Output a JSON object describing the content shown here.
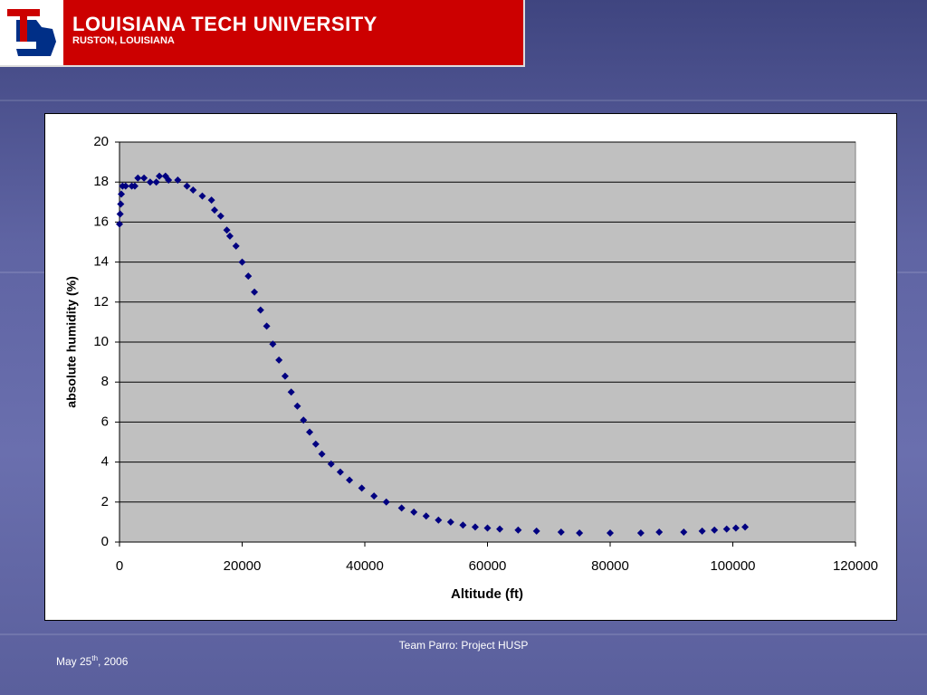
{
  "header": {
    "title": "LOUISIANA TECH UNIVERSITY",
    "subtitle": "RUSTON, LOUISIANA"
  },
  "footer": {
    "team": "Team Parro: Project HUSP",
    "date": [
      "May 25",
      "th",
      ", 2006"
    ]
  },
  "chart_data": {
    "type": "scatter",
    "x_label": "Altitude (ft)",
    "y_label": "absolute humidity (%)",
    "color": "#000080",
    "xlim": [
      0,
      120000
    ],
    "ylim": [
      0,
      20
    ],
    "xticks": [
      0,
      20000,
      40000,
      60000,
      80000,
      100000,
      120000
    ],
    "yticks": [
      0,
      2,
      4,
      6,
      8,
      10,
      12,
      14,
      16,
      18,
      20
    ],
    "grid": true,
    "x": [
      0,
      100,
      200,
      300,
      500,
      1000,
      2000,
      2500,
      3000,
      4000,
      5000,
      6000,
      6500,
      7500,
      8000,
      9500,
      11000,
      12000,
      13500,
      15000,
      15500,
      16500,
      17500,
      18000,
      19000,
      20000,
      21000,
      22000,
      23000,
      24000,
      25000,
      26000,
      27000,
      28000,
      29000,
      30000,
      31000,
      32000,
      33000,
      34500,
      36000,
      37500,
      39500,
      41500,
      43500,
      46000,
      48000,
      50000,
      52000,
      54000,
      56000,
      58000,
      60000,
      62000,
      65000,
      68000,
      72000,
      75000,
      80000,
      85000,
      88000,
      92000,
      95000,
      97000,
      99000,
      100500,
      102000
    ],
    "y": [
      15.9,
      16.4,
      16.9,
      17.4,
      17.8,
      17.8,
      17.8,
      17.8,
      18.2,
      18.2,
      18.0,
      18.0,
      18.3,
      18.3,
      18.1,
      18.1,
      17.8,
      17.6,
      17.3,
      17.1,
      16.6,
      16.3,
      15.6,
      15.3,
      14.8,
      14.0,
      13.3,
      12.5,
      11.6,
      10.8,
      9.9,
      9.1,
      8.3,
      7.5,
      6.8,
      6.1,
      5.5,
      4.9,
      4.4,
      3.9,
      3.5,
      3.1,
      2.7,
      2.3,
      2.0,
      1.7,
      1.5,
      1.3,
      1.1,
      1.0,
      0.85,
      0.75,
      0.7,
      0.65,
      0.6,
      0.55,
      0.5,
      0.45,
      0.45,
      0.45,
      0.5,
      0.5,
      0.55,
      0.6,
      0.65,
      0.7,
      0.75
    ]
  }
}
